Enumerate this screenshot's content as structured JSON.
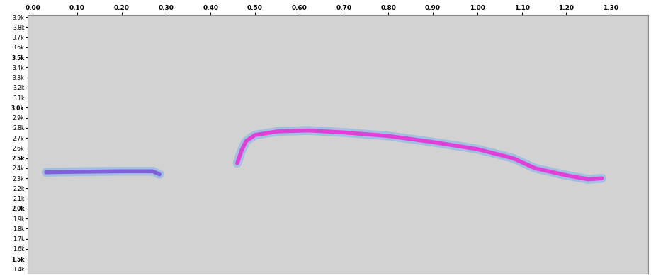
{
  "chart_data": {
    "type": "spectrogram",
    "series": [
      {
        "color": "#8060d8",
        "x": [
          0.03,
          0.1,
          0.2,
          0.27,
          0.285
        ],
        "values": [
          2360,
          2365,
          2370,
          2370,
          2340
        ]
      },
      {
        "color": "#e040d8",
        "x": [
          0.46,
          0.47,
          0.48,
          0.5,
          0.55,
          0.62,
          0.7,
          0.8,
          0.9,
          1.0,
          1.08,
          1.13,
          1.2,
          1.25,
          1.28
        ],
        "values": [
          2450,
          2580,
          2670,
          2730,
          2765,
          2775,
          2755,
          2720,
          2660,
          2590,
          2500,
          2400,
          2330,
          2290,
          2300
        ]
      }
    ],
    "xlim": [
      -0.012,
      1.385
    ],
    "xticks": [
      {
        "value": 0.0,
        "label": "0.00"
      },
      {
        "value": 0.1,
        "label": "0.10"
      },
      {
        "value": 0.2,
        "label": "0.20"
      },
      {
        "value": 0.3,
        "label": "0.30"
      },
      {
        "value": 0.4,
        "label": "0.40"
      },
      {
        "value": 0.5,
        "label": "0.50"
      },
      {
        "value": 0.6,
        "label": "0.60"
      },
      {
        "value": 0.7,
        "label": "0.70"
      },
      {
        "value": 0.8,
        "label": "0.80"
      },
      {
        "value": 0.9,
        "label": "0.90"
      },
      {
        "value": 1.0,
        "label": "1.00"
      },
      {
        "value": 1.1,
        "label": "1.10"
      },
      {
        "value": 1.2,
        "label": "1.20"
      },
      {
        "value": 1.3,
        "label": "1.30"
      }
    ],
    "ylim": [
      1354,
      3920
    ],
    "yticks": [
      {
        "value": 1400,
        "label": "1.4k"
      },
      {
        "value": 1500,
        "label": "1.5k"
      },
      {
        "value": 1600,
        "label": "1.6k"
      },
      {
        "value": 1700,
        "label": "1.7k"
      },
      {
        "value": 1800,
        "label": "1.8k"
      },
      {
        "value": 1900,
        "label": "1.9k"
      },
      {
        "value": 2000,
        "label": "2.0k"
      },
      {
        "value": 2100,
        "label": "2.1k"
      },
      {
        "value": 2200,
        "label": "2.2k"
      },
      {
        "value": 2300,
        "label": "2.3k"
      },
      {
        "value": 2400,
        "label": "2.4k"
      },
      {
        "value": 2500,
        "label": "2.5k"
      },
      {
        "value": 2600,
        "label": "2.6k"
      },
      {
        "value": 2700,
        "label": "2.7k"
      },
      {
        "value": 2800,
        "label": "2.8k"
      },
      {
        "value": 2900,
        "label": "2.9k"
      },
      {
        "value": 3000,
        "label": "3.0k"
      },
      {
        "value": 3100,
        "label": "3.1k"
      },
      {
        "value": 3200,
        "label": "3.2k"
      },
      {
        "value": 3300,
        "label": "3.3k"
      },
      {
        "value": 3400,
        "label": "3.4k"
      },
      {
        "value": 3500,
        "label": "3.5k"
      },
      {
        "value": 3600,
        "label": "3.6k"
      },
      {
        "value": 3700,
        "label": "3.7k"
      },
      {
        "value": 3800,
        "label": "3.8k"
      },
      {
        "value": 3900,
        "label": "3.9k"
      }
    ],
    "grid": false
  }
}
